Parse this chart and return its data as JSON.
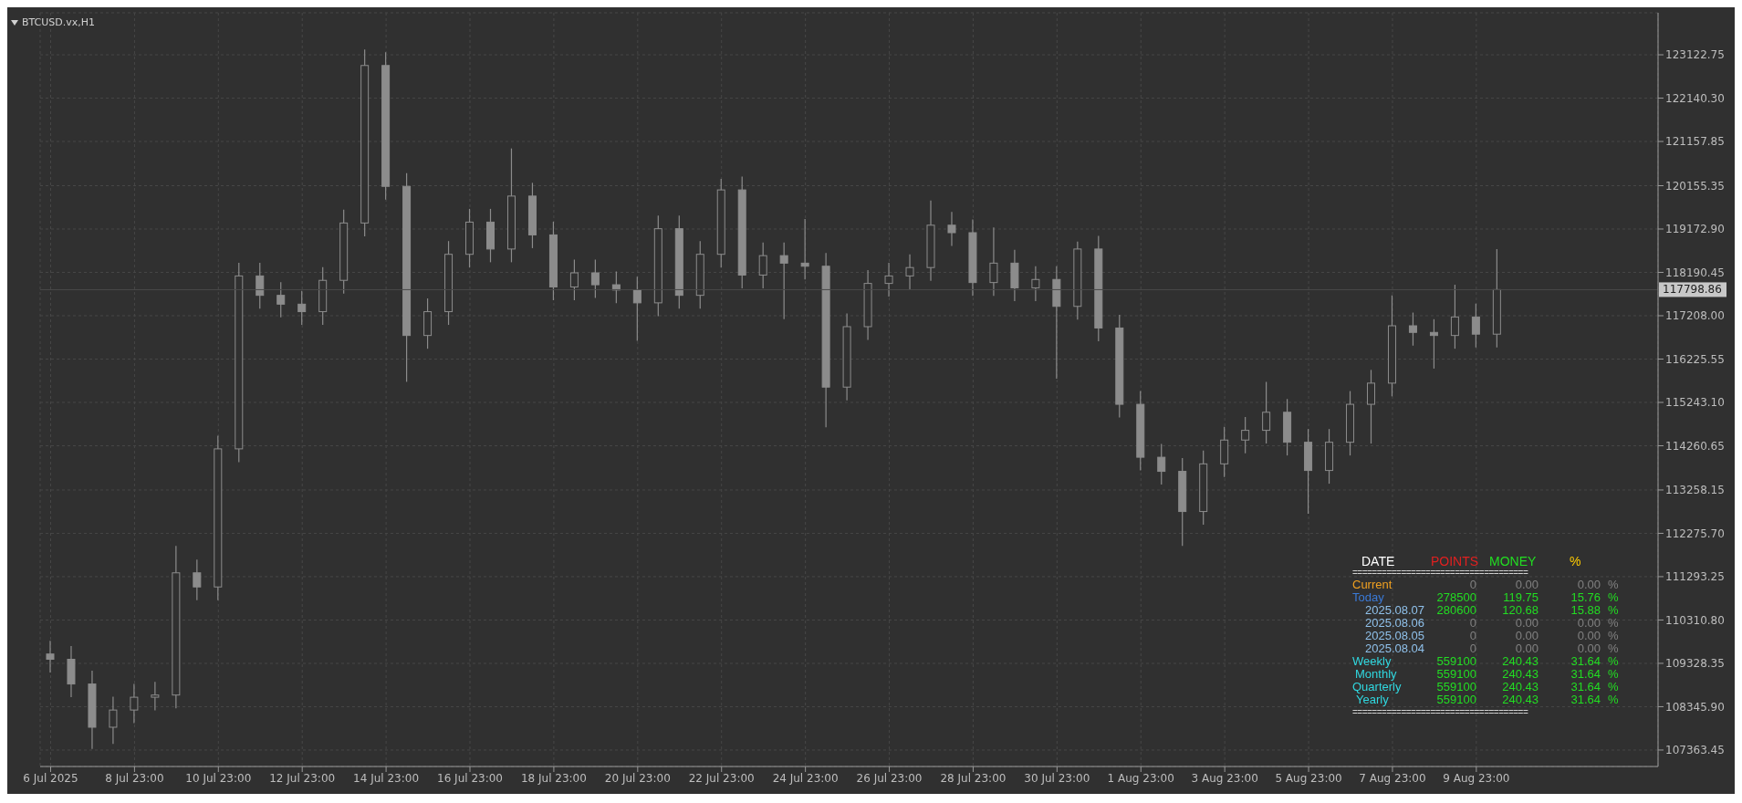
{
  "chart_data": {
    "type": "candlestick",
    "title": "BTCUSD.vx,H1",
    "color": "#8c8c8c",
    "x": [
      "2025-07-06T23:00",
      "2025-07-07T11:00",
      "2025-07-07T23:00",
      "2025-07-08T11:00",
      "2025-07-08T23:00",
      "2025-07-09T11:00",
      "2025-07-09T23:00",
      "2025-07-10T11:00",
      "2025-07-10T23:00",
      "2025-07-11T11:00",
      "2025-07-11T23:00",
      "2025-07-12T11:00",
      "2025-07-12T23:00",
      "2025-07-13T11:00",
      "2025-07-13T23:00",
      "2025-07-14T11:00",
      "2025-07-14T23:00",
      "2025-07-15T11:00",
      "2025-07-15T23:00",
      "2025-07-16T11:00",
      "2025-07-16T23:00",
      "2025-07-17T11:00",
      "2025-07-17T23:00",
      "2025-07-18T11:00",
      "2025-07-18T23:00",
      "2025-07-19T11:00",
      "2025-07-19T23:00",
      "2025-07-20T11:00",
      "2025-07-20T23:00",
      "2025-07-21T11:00",
      "2025-07-21T23:00",
      "2025-07-22T11:00",
      "2025-07-22T23:00",
      "2025-07-23T11:00",
      "2025-07-23T23:00",
      "2025-07-24T11:00",
      "2025-07-24T23:00",
      "2025-07-25T11:00",
      "2025-07-25T23:00",
      "2025-07-26T11:00",
      "2025-07-26T23:00",
      "2025-07-27T11:00",
      "2025-07-27T23:00",
      "2025-07-28T11:00",
      "2025-07-28T23:00",
      "2025-07-29T11:00",
      "2025-07-29T23:00",
      "2025-07-30T11:00",
      "2025-07-30T23:00",
      "2025-07-31T11:00",
      "2025-07-31T23:00",
      "2025-08-01T11:00",
      "2025-08-01T23:00",
      "2025-08-02T11:00",
      "2025-08-02T23:00",
      "2025-08-03T11:00",
      "2025-08-03T23:00",
      "2025-08-04T11:00",
      "2025-08-04T23:00",
      "2025-08-05T11:00",
      "2025-08-05T23:00",
      "2025-08-06T11:00",
      "2025-08-06T23:00",
      "2025-08-07T11:00",
      "2025-08-07T23:00",
      "2025-08-08T11:00",
      "2025-08-08T23:00",
      "2025-08-09T11:00",
      "2025-08-09T23:00",
      "2025-08-10T11:00"
    ],
    "ohlc": [
      [
        109540,
        109840,
        109120,
        109420
      ],
      [
        109420,
        109720,
        108560,
        108860
      ],
      [
        108860,
        109160,
        107390,
        107880
      ],
      [
        107880,
        108570,
        107500,
        108270
      ],
      [
        108270,
        108860,
        107970,
        108560
      ],
      [
        108560,
        108910,
        108260,
        108610
      ],
      [
        108610,
        111990,
        108310,
        111380
      ],
      [
        111380,
        111680,
        110760,
        111060
      ],
      [
        111060,
        114490,
        110760,
        114190
      ],
      [
        114190,
        118410,
        113890,
        118110
      ],
      [
        118110,
        118410,
        117370,
        117670
      ],
      [
        117670,
        117970,
        117170,
        117470
      ],
      [
        117470,
        117770,
        117000,
        117300
      ],
      [
        117300,
        118310,
        117000,
        118010
      ],
      [
        118010,
        119610,
        117710,
        119310
      ],
      [
        119310,
        123240,
        119010,
        122880
      ],
      [
        122880,
        123180,
        119840,
        120140
      ],
      [
        120140,
        120440,
        115710,
        116760
      ],
      [
        116760,
        117600,
        116460,
        117300
      ],
      [
        117300,
        118900,
        117000,
        118600
      ],
      [
        118600,
        119630,
        118300,
        119330
      ],
      [
        119330,
        119630,
        118420,
        118720
      ],
      [
        118720,
        121000,
        118420,
        119920
      ],
      [
        119920,
        120220,
        118740,
        119040
      ],
      [
        119040,
        119340,
        117560,
        117860
      ],
      [
        117860,
        118480,
        117560,
        118180
      ],
      [
        118180,
        118480,
        117610,
        117910
      ],
      [
        117910,
        118210,
        117490,
        117790
      ],
      [
        117790,
        118090,
        116640,
        117500
      ],
      [
        117500,
        119480,
        117200,
        119180
      ],
      [
        119180,
        119480,
        117370,
        117670
      ],
      [
        117670,
        118900,
        117370,
        118600
      ],
      [
        118600,
        120310,
        118300,
        120060
      ],
      [
        120060,
        120360,
        117830,
        118130
      ],
      [
        118130,
        118870,
        117830,
        118570
      ],
      [
        118570,
        118870,
        117130,
        118400
      ],
      [
        118400,
        119400,
        118030,
        118330
      ],
      [
        118330,
        118630,
        114680,
        115590
      ],
      [
        115590,
        117260,
        115290,
        116960
      ],
      [
        116960,
        118240,
        116660,
        117940
      ],
      [
        117940,
        118410,
        117640,
        118110
      ],
      [
        118110,
        118600,
        117810,
        118300
      ],
      [
        118300,
        119820,
        118000,
        119260
      ],
      [
        119260,
        119560,
        118790,
        119090
      ],
      [
        119090,
        119390,
        117660,
        117960
      ],
      [
        117960,
        119210,
        117660,
        118400
      ],
      [
        118400,
        118700,
        117540,
        117840
      ],
      [
        117840,
        118330,
        117540,
        118030
      ],
      [
        118030,
        118330,
        115780,
        117420
      ],
      [
        117420,
        118890,
        117120,
        118720
      ],
      [
        118720,
        119020,
        116630,
        116930
      ],
      [
        116930,
        117230,
        114900,
        115200
      ],
      [
        115200,
        115500,
        113700,
        114000
      ],
      [
        114000,
        114300,
        113380,
        113680
      ],
      [
        113680,
        113980,
        111990,
        112770
      ],
      [
        112770,
        114150,
        112470,
        113850
      ],
      [
        113850,
        114690,
        113550,
        114390
      ],
      [
        114390,
        114910,
        114090,
        114610
      ],
      [
        114610,
        115710,
        114310,
        115020
      ],
      [
        115020,
        115320,
        114040,
        114340
      ],
      [
        114340,
        114640,
        112720,
        113700
      ],
      [
        113700,
        114640,
        113400,
        114340
      ],
      [
        114340,
        115500,
        114040,
        115200
      ],
      [
        115200,
        115980,
        114310,
        115680
      ],
      [
        115680,
        117670,
        115380,
        116980
      ],
      [
        116980,
        117280,
        116530,
        116830
      ],
      [
        116830,
        117130,
        116010,
        116760
      ],
      [
        116760,
        117910,
        116460,
        117180
      ],
      [
        117180,
        117480,
        116490,
        116790
      ],
      [
        116790,
        118720,
        116490,
        117800
      ]
    ],
    "xlim": [
      "2025-07-06T17:00",
      "2025-08-14T07:00"
    ],
    "xticks": [
      {
        "value": "2025-07-06T23:00",
        "label": "6 Jul 2025"
      },
      {
        "value": "2025-07-08T23:00",
        "label": "8 Jul 23:00"
      },
      {
        "value": "2025-07-10T23:00",
        "label": "10 Jul 23:00"
      },
      {
        "value": "2025-07-12T23:00",
        "label": "12 Jul 23:00"
      },
      {
        "value": "2025-07-14T23:00",
        "label": "14 Jul 23:00"
      },
      {
        "value": "2025-07-16T23:00",
        "label": "16 Jul 23:00"
      },
      {
        "value": "2025-07-18T23:00",
        "label": "18 Jul 23:00"
      },
      {
        "value": "2025-07-20T23:00",
        "label": "20 Jul 23:00"
      },
      {
        "value": "2025-07-22T23:00",
        "label": "22 Jul 23:00"
      },
      {
        "value": "2025-07-24T23:00",
        "label": "24 Jul 23:00"
      },
      {
        "value": "2025-07-26T23:00",
        "label": "26 Jul 23:00"
      },
      {
        "value": "2025-07-28T23:00",
        "label": "28 Jul 23:00"
      },
      {
        "value": "2025-07-30T23:00",
        "label": "30 Jul 23:00"
      },
      {
        "value": "2025-08-01T23:00",
        "label": "1 Aug 23:00"
      },
      {
        "value": "2025-08-03T23:00",
        "label": "3 Aug 23:00"
      },
      {
        "value": "2025-08-05T23:00",
        "label": "5 Aug 23:00"
      },
      {
        "value": "2025-08-07T23:00",
        "label": "7 Aug 23:00"
      },
      {
        "value": "2025-08-09T23:00",
        "label": "9 Aug 23:00"
      }
    ],
    "ylim": [
      106990,
      124075
    ],
    "yticks": [
      {
        "value": 107363.45,
        "label": "107363.45"
      },
      {
        "value": 108345.9,
        "label": "108345.90"
      },
      {
        "value": 109328.35,
        "label": "109328.35"
      },
      {
        "value": 110310.8,
        "label": "110310.80"
      },
      {
        "value": 111293.25,
        "label": "111293.25"
      },
      {
        "value": 112275.7,
        "label": "112275.70"
      },
      {
        "value": 113258.15,
        "label": "113258.15"
      },
      {
        "value": 114260.65,
        "label": "114260.65"
      },
      {
        "value": 115243.1,
        "label": "115243.10"
      },
      {
        "value": 116225.55,
        "label": "116225.55"
      },
      {
        "value": 117208,
        "label": "117208.00"
      },
      {
        "value": 118190.45,
        "label": "118190.45"
      },
      {
        "value": 119172.9,
        "label": "119172.90"
      },
      {
        "value": 120155.35,
        "label": "120155.35"
      },
      {
        "value": 121157.85,
        "label": "121157.85"
      },
      {
        "value": 122140.3,
        "label": "122140.30"
      },
      {
        "value": 123122.75,
        "label": "123122.75"
      }
    ],
    "grid": true,
    "ref_lines": [
      {
        "axis": "y",
        "value": 117798.86,
        "label": "117798.86",
        "color": "#4a4a4a"
      }
    ],
    "annotations": [
      "DATE",
      "POINTS",
      "MONEY",
      "%",
      "====================================",
      "Current",
      "0",
      "0.00",
      "0.00",
      "%",
      "Today",
      "278500",
      "119.75",
      "15.76",
      "%",
      "2025.08.07",
      "280600",
      "120.68",
      "15.88",
      "%",
      "2025.08.06",
      "0",
      "0.00",
      "0.00",
      "%",
      "2025.08.05",
      "0",
      "0.00",
      "0.00",
      "%",
      "2025.08.04",
      "0",
      "0.00",
      "0.00",
      "%",
      "Weekly",
      "559100",
      "240.43",
      "31.64",
      "%",
      "Monthly",
      "559100",
      "240.43",
      "31.64",
      "%",
      "Quarterly",
      "559100",
      "240.43",
      "31.64",
      "%",
      "Yearly",
      "559100",
      "240.43",
      "31.64",
      "%",
      "===================================="
    ]
  }
}
